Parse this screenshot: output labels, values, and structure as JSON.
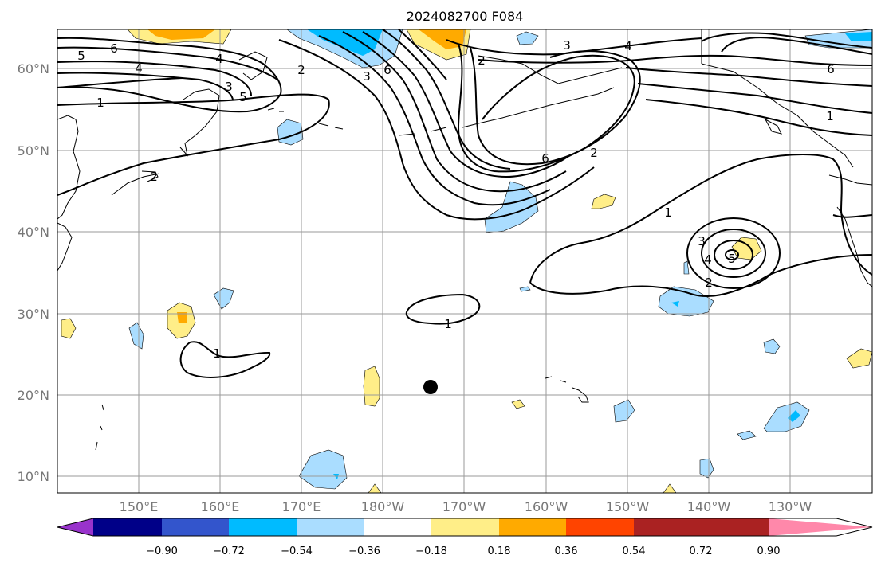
{
  "title": "2024082700 F084",
  "lat_labels": [
    "60°N",
    "50°N",
    "40°N",
    "30°N",
    "20°N",
    "10°N"
  ],
  "lon_labels": [
    "150°E",
    "160°E",
    "170°E",
    "180°W",
    "170°W",
    "160°W",
    "150°W",
    "140°W",
    "130°W"
  ],
  "contour_labels": [
    "6",
    "5",
    "4",
    "3",
    "2",
    "1",
    "2",
    "3",
    "4",
    "6",
    "5",
    "4",
    "1",
    "6",
    "2",
    "1",
    "1",
    "3",
    "4",
    "5",
    "2",
    "1",
    "3",
    "6",
    "2"
  ],
  "colorbar": {
    "colors": [
      "#9933cc",
      "#000088",
      "#3355cc",
      "#00bbff",
      "#aaddff",
      "#ffffff",
      "#ffee88",
      "#ffaa00",
      "#ff4400",
      "#aa2222",
      "#ff88aa"
    ],
    "tick_labels": [
      "−0.90",
      "−0.72",
      "−0.54",
      "−0.36",
      "−0.18",
      "0.18",
      "0.36",
      "0.54",
      "0.72",
      "0.90"
    ]
  },
  "marker": "storm-center-dot"
}
